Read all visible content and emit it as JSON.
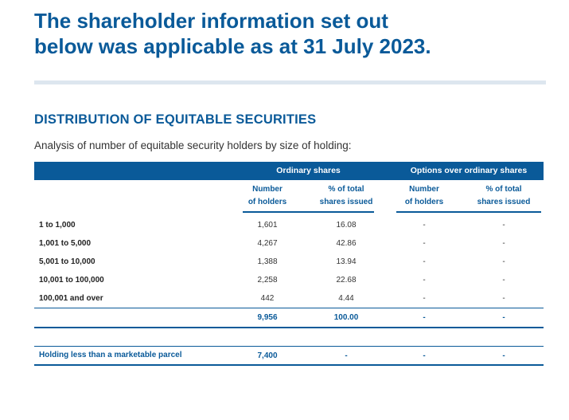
{
  "headline": {
    "line1": "The shareholder information set out",
    "line2": "below was applicable as at 31 July 2023."
  },
  "section_title": "DISTRIBUTION OF EQUITABLE SECURITIES",
  "intro": "Analysis of number of equitable security holders by size of holding:",
  "table": {
    "group_headers": [
      "Ordinary shares",
      "Options over ordinary shares"
    ],
    "sub_headers": [
      {
        "line1": "Number",
        "line2": "of holders"
      },
      {
        "line1": "% of total",
        "line2": "shares issued"
      },
      {
        "line1": "Number",
        "line2": "of holders"
      },
      {
        "line1": "% of total",
        "line2": "shares issued"
      }
    ],
    "rows": [
      {
        "label": "1 to 1,000",
        "values": [
          "1,601",
          "16.08",
          "-",
          "-"
        ]
      },
      {
        "label": "1,001 to 5,000",
        "values": [
          "4,267",
          "42.86",
          "-",
          "-"
        ]
      },
      {
        "label": "5,001 to 10,000",
        "values": [
          "1,388",
          "13.94",
          "-",
          "-"
        ]
      },
      {
        "label": "10,001 to 100,000",
        "values": [
          "2,258",
          "22.68",
          "-",
          "-"
        ]
      },
      {
        "label": "100,001 and over",
        "values": [
          "442",
          "4.44",
          "-",
          "-"
        ]
      }
    ],
    "total": {
      "values": [
        "9,956",
        "100.00",
        "-",
        "-"
      ]
    },
    "parcel": {
      "label": "Holding less than a marketable parcel",
      "values": [
        "7,400",
        "-",
        "-",
        "-"
      ]
    }
  },
  "colors": {
    "brand_blue": "#0a5a99",
    "divider": "#dde6ef"
  }
}
